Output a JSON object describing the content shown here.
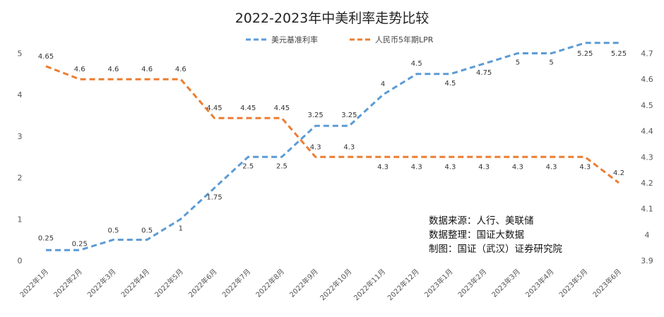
{
  "chart_data": {
    "type": "line",
    "title": "2022-2023年中美利率走势比较",
    "categories": [
      "2022年1月",
      "2022年2月",
      "2022年3月",
      "2022年4月",
      "2022年5月",
      "2022年6月",
      "2022年7月",
      "2022年8月",
      "2022年9月",
      "2022年10月",
      "2022年11月",
      "2022年12月",
      "2023年1月",
      "2023年2月",
      "2023年3月",
      "2023年4月",
      "2023年5月",
      "2023年6月"
    ],
    "series": [
      {
        "name": "美元基准利率",
        "axis": "left",
        "color": "#5B9BD5",
        "values": [
          0.25,
          0.25,
          0.5,
          0.5,
          1,
          1.75,
          2.5,
          2.5,
          3.25,
          3.25,
          4,
          4.5,
          4.5,
          4.75,
          5,
          5,
          5.25,
          5.25
        ]
      },
      {
        "name": "人民币5年期LPR",
        "axis": "right",
        "color": "#ED7D31",
        "values": [
          4.65,
          4.6,
          4.6,
          4.6,
          4.6,
          4.45,
          4.45,
          4.45,
          4.3,
          4.3,
          4.3,
          4.3,
          4.3,
          4.3,
          4.3,
          4.3,
          4.3,
          4.2
        ]
      }
    ],
    "y_left": {
      "min": 0,
      "max": 5,
      "ticks": [
        "0",
        "1",
        "2",
        "3",
        "4",
        "5"
      ]
    },
    "y_right": {
      "min": 3.9,
      "max": 4.7,
      "ticks": [
        "3.9",
        "4",
        "4.1",
        "4.2",
        "4.3",
        "4.4",
        "4.5",
        "4.6",
        "4.7"
      ]
    },
    "grid": false,
    "legend_position": "top",
    "line_style": "dashed"
  },
  "notes": [
    "数据来源：人行、美联储",
    "数据整理：国证大数据",
    "制图：国证（武汉）证券研究院"
  ]
}
